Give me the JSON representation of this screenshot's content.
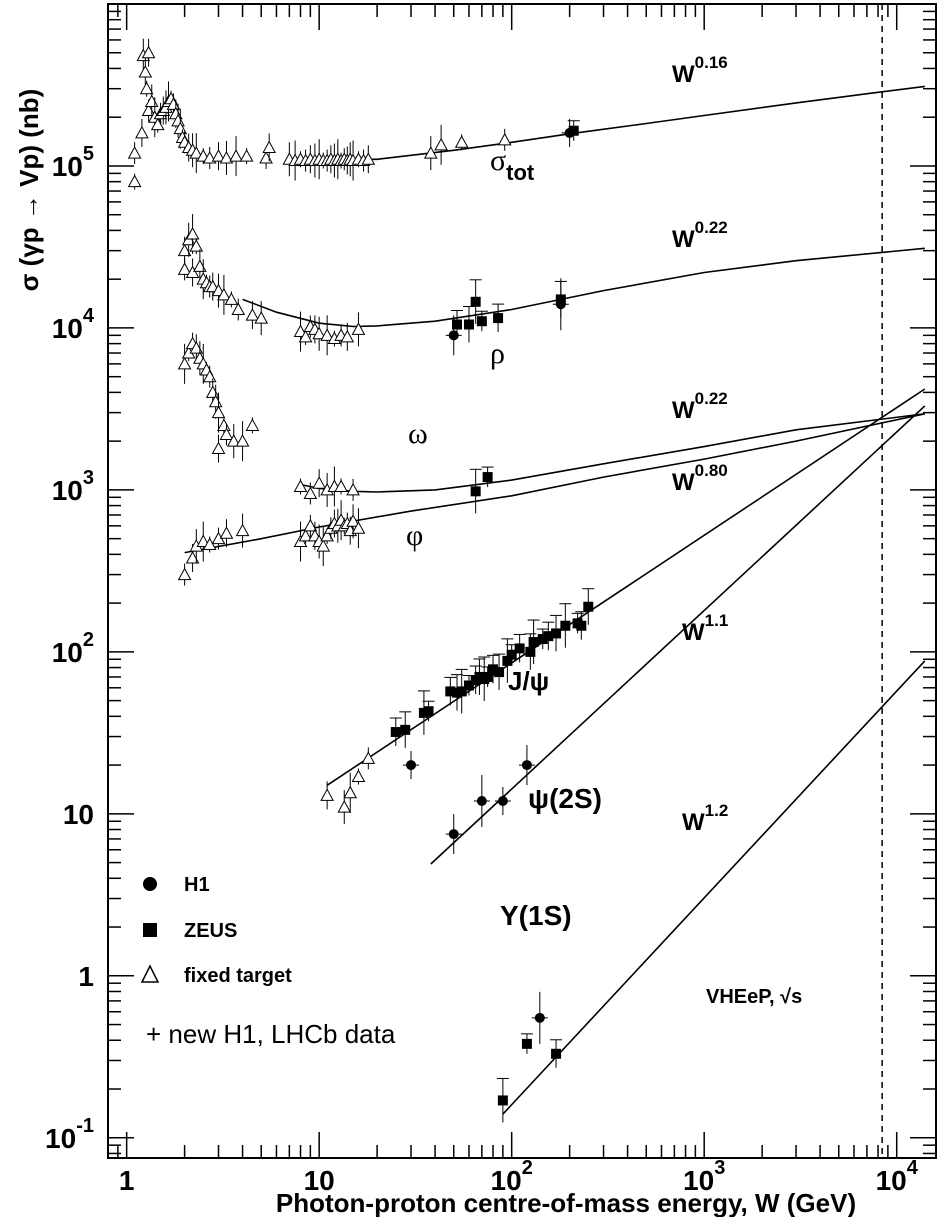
{
  "chart_data": {
    "type": "scatter",
    "x_scale": "log",
    "y_scale": "log",
    "xlim": [
      0.8,
      16000
    ],
    "ylim": [
      0.075,
      1000000
    ],
    "xlabel": "Photon-proton centre-of-mass energy, W  (GeV)",
    "ylabel": "σ (γp → Vp)  (nb)",
    "x_ticks": [
      {
        "value": 1,
        "base": "1",
        "exp": ""
      },
      {
        "value": 10,
        "base": "10",
        "exp": ""
      },
      {
        "value": 100,
        "base": "10",
        "exp": "2"
      },
      {
        "value": 1000,
        "base": "10",
        "exp": "3"
      },
      {
        "value": 10000,
        "base": "10",
        "exp": "4"
      }
    ],
    "y_ticks": [
      {
        "value": 0.1,
        "base": "10",
        "exp": "-1"
      },
      {
        "value": 1,
        "base": "1",
        "exp": ""
      },
      {
        "value": 10,
        "base": "10",
        "exp": ""
      },
      {
        "value": 100,
        "base": "10",
        "exp": "2"
      },
      {
        "value": 1000,
        "base": "10",
        "exp": "3"
      },
      {
        "value": 10000,
        "base": "10",
        "exp": "4"
      },
      {
        "value": 100000,
        "base": "10",
        "exp": "5"
      }
    ],
    "vertical_line": {
      "x": 8400,
      "label": "VHEeP, √s"
    },
    "curves": [
      {
        "name": "sigma_tot",
        "label_main": "σ",
        "label_sub": "tot",
        "power_label": "0.16",
        "points": [
          [
            10,
            110000
          ],
          [
            20,
            110000
          ],
          [
            50,
            125000
          ],
          [
            100,
            140000
          ],
          [
            200,
            158000
          ],
          [
            500,
            183000
          ],
          [
            1000,
            205000
          ],
          [
            3000,
            245000
          ],
          [
            8000,
            285000
          ],
          [
            14000,
            310000
          ]
        ]
      },
      {
        "name": "rho",
        "label_main": "ρ",
        "power_label": "0.22",
        "points": [
          [
            4,
            15000
          ],
          [
            6,
            12500
          ],
          [
            10,
            10700
          ],
          [
            15,
            10200
          ],
          [
            20,
            10300
          ],
          [
            40,
            11000
          ],
          [
            100,
            13000
          ],
          [
            300,
            17000
          ],
          [
            1000,
            22000
          ],
          [
            3000,
            26000
          ],
          [
            14000,
            31000
          ]
        ]
      },
      {
        "name": "omega",
        "label_main": "ω",
        "power_label": "0.22",
        "points": [
          [
            8,
            1080
          ],
          [
            10,
            1020
          ],
          [
            15,
            980
          ],
          [
            20,
            970
          ],
          [
            40,
            1000
          ],
          [
            100,
            1150
          ],
          [
            300,
            1450
          ],
          [
            1000,
            1850
          ],
          [
            3000,
            2350
          ],
          [
            14000,
            2950
          ]
        ]
      },
      {
        "name": "phi",
        "label_main": "φ",
        "power_label": "0.80",
        "points": [
          [
            2,
            410
          ],
          [
            5,
            500
          ],
          [
            10,
            590
          ],
          [
            30,
            740
          ],
          [
            100,
            920
          ],
          [
            300,
            1200
          ],
          [
            1000,
            1550
          ],
          [
            3000,
            2000
          ],
          [
            14000,
            2950
          ]
        ]
      },
      {
        "name": "jpsi",
        "label_main": "J/ψ",
        "points": [
          [
            11,
            15
          ],
          [
            14000,
            4200
          ]
        ]
      },
      {
        "name": "psi2s",
        "label_main": "ψ(2S)",
        "power_label": "1.1",
        "points": [
          [
            38,
            4.9
          ],
          [
            14000,
            3300
          ]
        ]
      },
      {
        "name": "upsilon",
        "label_main": "Υ(1S)",
        "power_label": "1.2",
        "points": [
          [
            90,
            0.14
          ],
          [
            14000,
            88
          ]
        ]
      }
    ],
    "data_points": {
      "fixed_target": [
        [
          1.1,
          80000
        ],
        [
          1.1,
          120000
        ],
        [
          1.2,
          160000
        ],
        [
          1.22,
          480000
        ],
        [
          1.25,
          380000
        ],
        [
          1.27,
          300000
        ],
        [
          1.3,
          220000
        ],
        [
          1.3,
          500000
        ],
        [
          1.35,
          250000
        ],
        [
          1.4,
          200000
        ],
        [
          1.45,
          180000
        ],
        [
          1.5,
          210000
        ],
        [
          1.55,
          220000
        ],
        [
          1.6,
          230000
        ],
        [
          1.65,
          250000
        ],
        [
          1.7,
          260000
        ],
        [
          1.75,
          240000
        ],
        [
          1.8,
          210000
        ],
        [
          1.85,
          190000
        ],
        [
          1.9,
          170000
        ],
        [
          1.95,
          150000
        ],
        [
          2.0,
          140000
        ],
        [
          2.1,
          130000
        ],
        [
          2.2,
          125000
        ],
        [
          2.3,
          120000
        ],
        [
          2.5,
          115000
        ],
        [
          2.7,
          112000
        ],
        [
          3.0,
          115000
        ],
        [
          3.3,
          112000
        ],
        [
          3.7,
          115000
        ],
        [
          4.2,
          115000
        ],
        [
          5.3,
          112000
        ],
        [
          5.5,
          130000
        ],
        [
          7,
          110000
        ],
        [
          7.5,
          108000
        ],
        [
          8,
          110000
        ],
        [
          8.5,
          108000
        ],
        [
          9,
          110000
        ],
        [
          9.5,
          108000
        ],
        [
          10,
          110000
        ],
        [
          10.5,
          108000
        ],
        [
          11,
          108000
        ],
        [
          11.5,
          110000
        ],
        [
          12,
          108000
        ],
        [
          12.5,
          110000
        ],
        [
          13,
          108000
        ],
        [
          13.5,
          110000
        ],
        [
          14,
          108000
        ],
        [
          14.5,
          110000
        ],
        [
          15,
          108000
        ],
        [
          16,
          110000
        ],
        [
          17,
          108000
        ],
        [
          18,
          110000
        ],
        [
          38,
          120000
        ],
        [
          43,
          135000
        ],
        [
          55,
          140000
        ],
        [
          92,
          145000
        ],
        [
          2.0,
          30000
        ],
        [
          2.1,
          35000
        ],
        [
          2.2,
          38000
        ],
        [
          2.3,
          32000
        ],
        [
          2.0,
          23000
        ],
        [
          2.2,
          22000
        ],
        [
          2.4,
          24000
        ],
        [
          2.5,
          20000
        ],
        [
          2.6,
          19000
        ],
        [
          2.7,
          18000
        ],
        [
          2.8,
          18000
        ],
        [
          3.0,
          17000
        ],
        [
          3.2,
          16000
        ],
        [
          3.5,
          15000
        ],
        [
          3.8,
          13000
        ],
        [
          4.5,
          12000
        ],
        [
          5.0,
          11500
        ],
        [
          8,
          9500
        ],
        [
          8.5,
          8800
        ],
        [
          9,
          10200
        ],
        [
          9.5,
          9800
        ],
        [
          10,
          9200
        ],
        [
          11,
          9000
        ],
        [
          12,
          8600
        ],
        [
          13,
          9000
        ],
        [
          14,
          8800
        ],
        [
          16,
          9800
        ],
        [
          2.0,
          6000
        ],
        [
          2.1,
          7000
        ],
        [
          2.2,
          8000
        ],
        [
          2.3,
          7500
        ],
        [
          2.4,
          6500
        ],
        [
          2.5,
          6000
        ],
        [
          2.6,
          5500
        ],
        [
          2.7,
          5000
        ],
        [
          2.8,
          4000
        ],
        [
          2.9,
          3500
        ],
        [
          3.0,
          3000
        ],
        [
          3.2,
          2500
        ],
        [
          3.3,
          2200
        ],
        [
          3.0,
          1800
        ],
        [
          3.6,
          2000
        ],
        [
          4.0,
          2000
        ],
        [
          4.5,
          2500
        ],
        [
          2.0,
          300
        ],
        [
          2.2,
          380
        ],
        [
          2.3,
          450
        ],
        [
          2.5,
          480
        ],
        [
          2.7,
          460
        ],
        [
          3.0,
          500
        ],
        [
          3.3,
          540
        ],
        [
          4.0,
          560
        ],
        [
          8,
          480
        ],
        [
          8.5,
          520
        ],
        [
          9,
          600
        ],
        [
          9.5,
          520
        ],
        [
          10,
          480
        ],
        [
          10.5,
          450
        ],
        [
          11,
          520
        ],
        [
          11.5,
          580
        ],
        [
          12,
          620
        ],
        [
          12.5,
          600
        ],
        [
          13,
          650
        ],
        [
          13.5,
          600
        ],
        [
          14,
          620
        ],
        [
          14.5,
          560
        ],
        [
          15,
          640
        ],
        [
          16,
          580
        ],
        [
          8,
          1050
        ],
        [
          9,
          950
        ],
        [
          10,
          1100
        ],
        [
          11,
          1000
        ],
        [
          12,
          1050
        ],
        [
          13,
          1050
        ],
        [
          15,
          1000
        ],
        [
          11,
          13
        ],
        [
          13.5,
          11
        ],
        [
          14.5,
          13.5
        ],
        [
          16,
          17
        ],
        [
          18,
          22
        ]
      ],
      "h1": [
        [
          200,
          160000
        ],
        [
          50,
          9000
        ],
        [
          180,
          14000
        ],
        [
          30,
          20
        ],
        [
          50,
          7.5
        ],
        [
          70,
          12
        ],
        [
          90,
          12
        ],
        [
          120,
          20
        ],
        [
          140,
          0.55
        ]
      ],
      "zeus": [
        [
          210,
          165000
        ],
        [
          52,
          10500
        ],
        [
          60,
          10500
        ],
        [
          65,
          14500
        ],
        [
          70,
          11000
        ],
        [
          85,
          11500
        ],
        [
          180,
          15000
        ],
        [
          65,
          980
        ],
        [
          75,
          1200
        ],
        [
          25,
          32
        ],
        [
          28,
          33
        ],
        [
          35,
          42
        ],
        [
          37,
          43
        ],
        [
          48,
          57
        ],
        [
          52,
          56
        ],
        [
          55,
          57
        ],
        [
          60,
          62
        ],
        [
          65,
          67
        ],
        [
          68,
          70
        ],
        [
          72,
          68
        ],
        [
          75,
          70
        ],
        [
          80,
          78
        ],
        [
          86,
          75
        ],
        [
          95,
          88
        ],
        [
          100,
          96
        ],
        [
          110,
          105
        ],
        [
          125,
          100
        ],
        [
          130,
          115
        ],
        [
          145,
          120
        ],
        [
          155,
          125
        ],
        [
          170,
          130
        ],
        [
          190,
          145
        ],
        [
          220,
          150
        ],
        [
          230,
          145
        ],
        [
          250,
          190
        ],
        [
          90,
          0.17
        ],
        [
          120,
          0.38
        ],
        [
          170,
          0.33
        ]
      ]
    },
    "legend": [
      {
        "marker": "circle",
        "label": "H1"
      },
      {
        "marker": "square",
        "label": "ZEUS"
      },
      {
        "marker": "triangle",
        "label": "fixed target"
      }
    ],
    "annotation": "+ new H1, LHCb data"
  }
}
